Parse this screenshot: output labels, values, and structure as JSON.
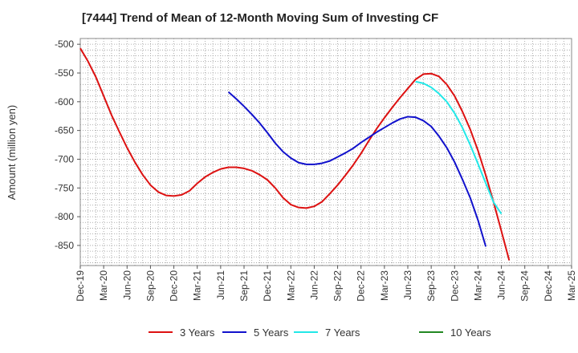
{
  "chart_data": {
    "type": "line",
    "title": "[7444]  Trend of Mean of 12-Month Moving Sum of Investing CF",
    "xlabel": "",
    "ylabel": "Amount (million yen)",
    "ylim": [
      -885,
      -490
    ],
    "yticks": [
      -500,
      -550,
      -600,
      -650,
      -700,
      -750,
      -800,
      -850
    ],
    "x_tick_labels": [
      "Dec-19",
      "Mar-20",
      "Jun-20",
      "Sep-20",
      "Dec-20",
      "Mar-21",
      "Jun-21",
      "Sep-21",
      "Dec-21",
      "Mar-22",
      "Jun-22",
      "Sep-22",
      "Dec-22",
      "Mar-23",
      "Jun-23",
      "Sep-23",
      "Dec-23",
      "Mar-24",
      "Jun-24",
      "Sep-24",
      "Dec-24",
      "Mar-25"
    ],
    "grid": true,
    "legend_position": "bottom",
    "series": [
      {
        "name": "3 Years",
        "color": "#dd1111",
        "points": [
          [
            0,
            -507
          ],
          [
            1,
            -530
          ],
          [
            2,
            -557
          ],
          [
            3,
            -590
          ],
          [
            4,
            -623
          ],
          [
            5,
            -652
          ],
          [
            6,
            -680
          ],
          [
            7,
            -705
          ],
          [
            8,
            -727
          ],
          [
            9,
            -745
          ],
          [
            10,
            -757
          ],
          [
            11,
            -763
          ],
          [
            12,
            -764
          ],
          [
            13,
            -762
          ],
          [
            14,
            -755
          ],
          [
            15,
            -742
          ],
          [
            16,
            -731
          ],
          [
            17,
            -723
          ],
          [
            18,
            -717
          ],
          [
            19,
            -714
          ],
          [
            20,
            -714
          ],
          [
            21,
            -716
          ],
          [
            22,
            -720
          ],
          [
            23,
            -727
          ],
          [
            24,
            -736
          ],
          [
            25,
            -750
          ],
          [
            26,
            -767
          ],
          [
            27,
            -779
          ],
          [
            28,
            -784
          ],
          [
            29,
            -785
          ],
          [
            30,
            -782
          ],
          [
            31,
            -774
          ],
          [
            32,
            -760
          ],
          [
            33,
            -745
          ],
          [
            34,
            -728
          ],
          [
            35,
            -710
          ],
          [
            36,
            -690
          ],
          [
            37,
            -668
          ],
          [
            38,
            -647
          ],
          [
            39,
            -628
          ],
          [
            40,
            -610
          ],
          [
            41,
            -593
          ],
          [
            42,
            -577
          ],
          [
            43,
            -561
          ],
          [
            44,
            -552
          ],
          [
            45,
            -551
          ],
          [
            46,
            -556
          ],
          [
            47,
            -570
          ],
          [
            48,
            -590
          ],
          [
            49,
            -617
          ],
          [
            50,
            -648
          ],
          [
            51,
            -685
          ],
          [
            52,
            -728
          ],
          [
            53,
            -775
          ],
          [
            54,
            -825
          ],
          [
            55,
            -876
          ]
        ]
      },
      {
        "name": "5 Years",
        "color": "#1111cc",
        "points": [
          [
            19,
            -583
          ],
          [
            20,
            -595
          ],
          [
            21,
            -608
          ],
          [
            22,
            -622
          ],
          [
            23,
            -637
          ],
          [
            24,
            -654
          ],
          [
            25,
            -672
          ],
          [
            26,
            -687
          ],
          [
            27,
            -698
          ],
          [
            28,
            -706
          ],
          [
            29,
            -709
          ],
          [
            30,
            -709
          ],
          [
            31,
            -707
          ],
          [
            32,
            -703
          ],
          [
            33,
            -696
          ],
          [
            34,
            -689
          ],
          [
            35,
            -681
          ],
          [
            36,
            -671
          ],
          [
            37,
            -662
          ],
          [
            38,
            -653
          ],
          [
            39,
            -645
          ],
          [
            40,
            -637
          ],
          [
            41,
            -630
          ],
          [
            42,
            -626
          ],
          [
            43,
            -627
          ],
          [
            44,
            -633
          ],
          [
            45,
            -643
          ],
          [
            46,
            -660
          ],
          [
            47,
            -680
          ],
          [
            48,
            -705
          ],
          [
            49,
            -735
          ],
          [
            50,
            -767
          ],
          [
            51,
            -806
          ],
          [
            52,
            -852
          ]
        ]
      },
      {
        "name": "7 Years",
        "color": "#22e8e8",
        "points": [
          [
            43,
            -565
          ],
          [
            44,
            -568
          ],
          [
            45,
            -575
          ],
          [
            46,
            -586
          ],
          [
            47,
            -600
          ],
          [
            48,
            -620
          ],
          [
            49,
            -645
          ],
          [
            50,
            -675
          ],
          [
            51,
            -708
          ],
          [
            52,
            -742
          ],
          [
            53,
            -775
          ],
          [
            54,
            -795
          ]
        ]
      },
      {
        "name": "10 Years",
        "color": "#228822",
        "points": []
      }
    ]
  }
}
